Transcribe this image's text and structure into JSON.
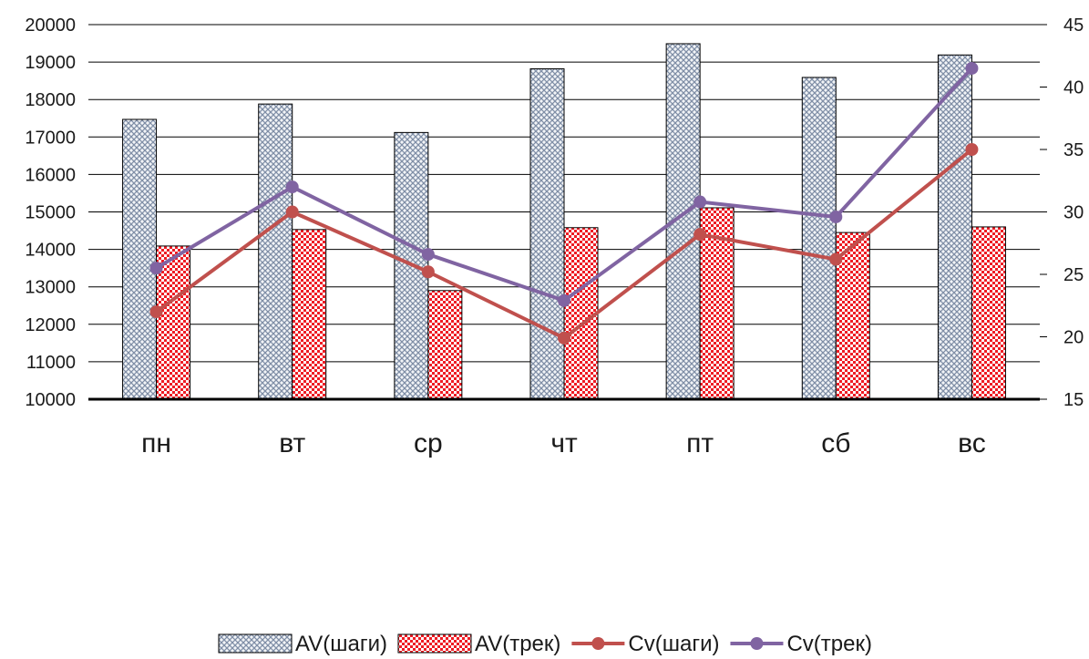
{
  "chart_data": {
    "type": "bar",
    "categories": [
      "пн",
      "вт",
      "ср",
      "чт",
      "пт",
      "сб",
      "вс"
    ],
    "series": [
      {
        "name": "AV(шаги)",
        "type": "bar",
        "axis": "left",
        "pattern": "crosshatch",
        "color": "#9aa9bd",
        "values": [
          17470,
          17880,
          17120,
          18820,
          19490,
          18590,
          19190
        ]
      },
      {
        "name": "AV(трек)",
        "type": "bar",
        "axis": "left",
        "pattern": "checker",
        "color": "#ee1c24",
        "values": [
          14090,
          14530,
          12900,
          14580,
          15110,
          14450,
          14600
        ]
      },
      {
        "name": "Cv(шаги)",
        "type": "line",
        "axis": "right",
        "color": "#c0504d",
        "values": [
          22.0,
          30.0,
          25.2,
          19.9,
          28.2,
          26.2,
          35.0
        ]
      },
      {
        "name": "Cv(трек)",
        "type": "line",
        "axis": "right",
        "color": "#8064a2",
        "values": [
          25.5,
          32.0,
          26.6,
          22.9,
          30.8,
          29.6,
          41.5
        ]
      }
    ],
    "y_left": {
      "min": 10000,
      "max": 20000,
      "step": 1000,
      "ticks": [
        "10000",
        "11000",
        "12000",
        "13000",
        "14000",
        "15000",
        "16000",
        "17000",
        "18000",
        "19000",
        "20000"
      ]
    },
    "y_right": {
      "min": 15,
      "max": 45,
      "step": 5,
      "ticks": [
        "15",
        "20",
        "25",
        "30",
        "35",
        "40",
        "45"
      ]
    },
    "title": "",
    "xlabel": "",
    "grid": true,
    "legend": "bottom"
  }
}
